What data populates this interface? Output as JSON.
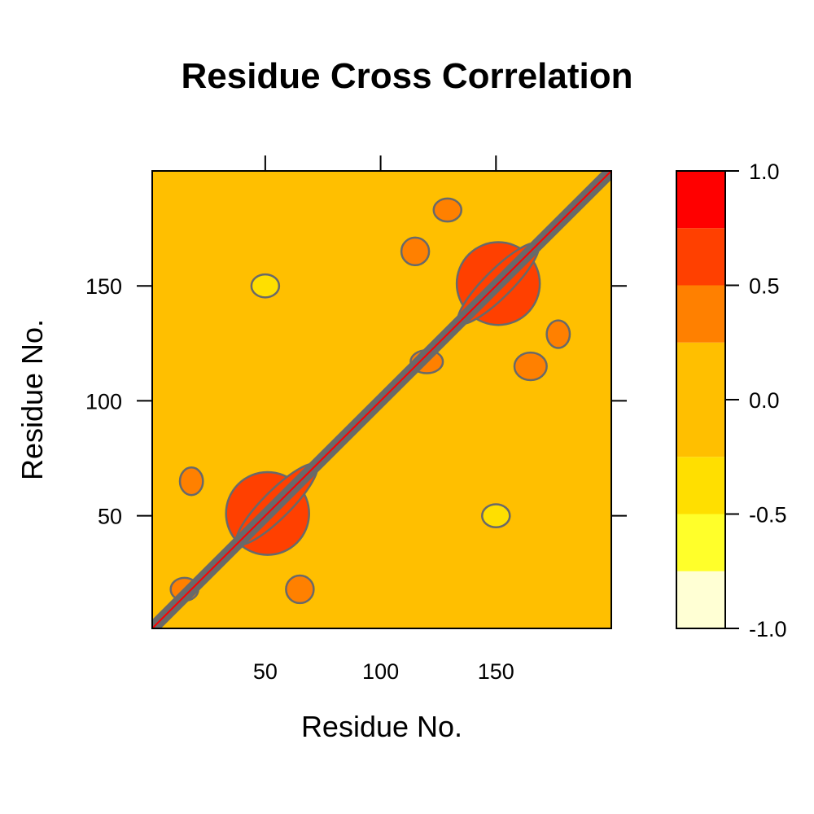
{
  "chart_data": {
    "type": "heatmap",
    "title": "Residue Cross Correlation",
    "xlabel": "Residue No.",
    "ylabel": "Residue No.",
    "xlim": [
      1,
      200
    ],
    "ylim": [
      1,
      200
    ],
    "x_ticks": [
      50,
      100,
      150
    ],
    "y_ticks": [
      50,
      100,
      150
    ],
    "colorbar": {
      "min": -1.0,
      "max": 1.0,
      "ticks": [
        {
          "value": 1.0,
          "label": "1.0"
        },
        {
          "value": 0.5,
          "label": "0.5"
        },
        {
          "value": 0.0,
          "label": "0.0"
        },
        {
          "value": -0.5,
          "label": "-0.5"
        },
        {
          "value": -1.0,
          "label": "-1.0"
        }
      ],
      "bands": [
        {
          "from": -1.0,
          "to": -0.75,
          "color": "#FFFFD4"
        },
        {
          "from": -0.75,
          "to": -0.5,
          "color": "#FFFF2A"
        },
        {
          "from": -0.5,
          "to": -0.25,
          "color": "#FFDF00"
        },
        {
          "from": -0.25,
          "to": 0.25,
          "color": "#FFBF00"
        },
        {
          "from": 0.25,
          "to": 0.5,
          "color": "#FF8000"
        },
        {
          "from": 0.5,
          "to": 0.75,
          "color": "#FF4000"
        },
        {
          "from": 0.75,
          "to": 1.0,
          "color": "#FF0000"
        }
      ]
    },
    "background_value": 0.0,
    "contour_color": "#696969",
    "diagonal": {
      "value": 1.0,
      "width_residues": 4
    },
    "regions": [
      {
        "name": "domain-1-core",
        "x": 51,
        "y": 51,
        "rx": 18,
        "ry": 18,
        "value": 0.7
      },
      {
        "name": "domain-2-core",
        "x": 151,
        "y": 151,
        "rx": 18,
        "ry": 18,
        "value": 0.7
      },
      {
        "name": "domain-1-cross-arm",
        "x": 55,
        "y": 55,
        "rx": 24,
        "ry": 6,
        "angle": -45,
        "value": 0.6
      },
      {
        "name": "domain-2-cross-arm",
        "x": 151,
        "y": 151,
        "rx": 24,
        "ry": 6,
        "angle": -45,
        "value": 0.6
      },
      {
        "name": "offdiag-patch-1",
        "x": 15,
        "y": 18,
        "rx": 6,
        "ry": 5,
        "value": 0.5
      },
      {
        "name": "offdiag-patch-2",
        "x": 18,
        "y": 65,
        "rx": 5,
        "ry": 6,
        "value": 0.4
      },
      {
        "name": "offdiag-patch-3",
        "x": 65,
        "y": 18,
        "rx": 6,
        "ry": 6,
        "value": 0.4
      },
      {
        "name": "offdiag-patch-4",
        "x": 120,
        "y": 117,
        "rx": 7,
        "ry": 5,
        "value": 0.5
      },
      {
        "name": "offdiag-patch-5",
        "x": 115,
        "y": 165,
        "rx": 6,
        "ry": 6,
        "value": 0.4
      },
      {
        "name": "offdiag-patch-6",
        "x": 165,
        "y": 115,
        "rx": 7,
        "ry": 6,
        "value": 0.4
      },
      {
        "name": "offdiag-patch-7",
        "x": 129,
        "y": 183,
        "rx": 6,
        "ry": 5,
        "value": 0.4
      },
      {
        "name": "offdiag-patch-8",
        "x": 177,
        "y": 129,
        "rx": 5,
        "ry": 6,
        "value": 0.4
      },
      {
        "name": "neg-patch-1",
        "x": 50,
        "y": 150,
        "rx": 6,
        "ry": 5,
        "value": -0.4
      },
      {
        "name": "neg-patch-2",
        "x": 150,
        "y": 50,
        "rx": 6,
        "ry": 5,
        "value": -0.4
      }
    ]
  }
}
